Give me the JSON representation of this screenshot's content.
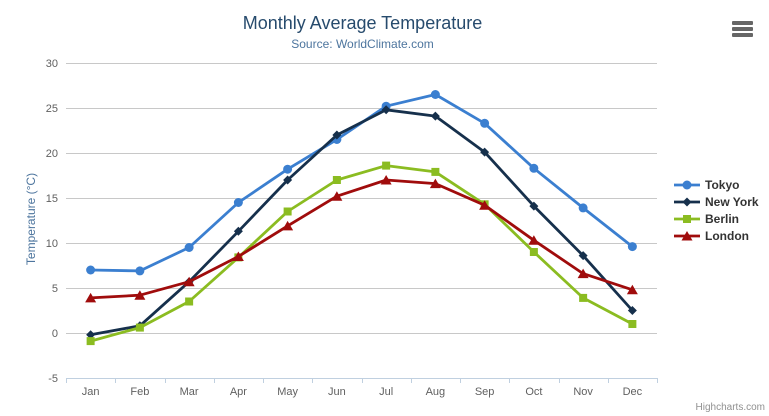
{
  "chart_data": {
    "type": "line",
    "title": "Monthly Average Temperature",
    "subtitle": "Source: WorldClimate.com",
    "xlabel": "",
    "ylabel": "Temperature (°C)",
    "categories": [
      "Jan",
      "Feb",
      "Mar",
      "Apr",
      "May",
      "Jun",
      "Jul",
      "Aug",
      "Sep",
      "Oct",
      "Nov",
      "Dec"
    ],
    "ylim": [
      -5,
      30
    ],
    "yticks": [
      -5,
      0,
      5,
      10,
      15,
      20,
      25,
      30
    ],
    "grid": true,
    "legend_position": "right",
    "series": [
      {
        "name": "Tokyo",
        "color": "#3b7fd0",
        "marker": "circle",
        "values": [
          7.0,
          6.9,
          9.5,
          14.5,
          18.2,
          21.5,
          25.2,
          26.5,
          23.3,
          18.3,
          13.9,
          9.6
        ]
      },
      {
        "name": "New York",
        "color": "#16304c",
        "marker": "diamond",
        "values": [
          -0.2,
          0.8,
          5.7,
          11.3,
          17.0,
          22.0,
          24.8,
          24.1,
          20.1,
          14.1,
          8.6,
          2.5
        ]
      },
      {
        "name": "Berlin",
        "color": "#8bbc21",
        "marker": "square",
        "values": [
          -0.9,
          0.6,
          3.5,
          8.4,
          13.5,
          17.0,
          18.6,
          17.9,
          14.3,
          9.0,
          3.9,
          1.0
        ]
      },
      {
        "name": "London",
        "color": "#a00c0c",
        "marker": "triangle",
        "values": [
          3.9,
          4.2,
          5.7,
          8.5,
          11.9,
          15.2,
          17.0,
          16.6,
          14.2,
          10.3,
          6.6,
          4.8
        ]
      }
    ]
  },
  "credits": "Highcharts.com",
  "colors": {
    "title": "#274b6d",
    "subtitle": "#4d759e",
    "axis_title": "#4d759e",
    "axis_label": "#606060",
    "grid": "#c8c8c8",
    "axis_line": "#c0d0e0",
    "tick": "#c0d0e0",
    "legend_text": "#333333",
    "credits": "#909090",
    "menu_icon": "#666666"
  }
}
